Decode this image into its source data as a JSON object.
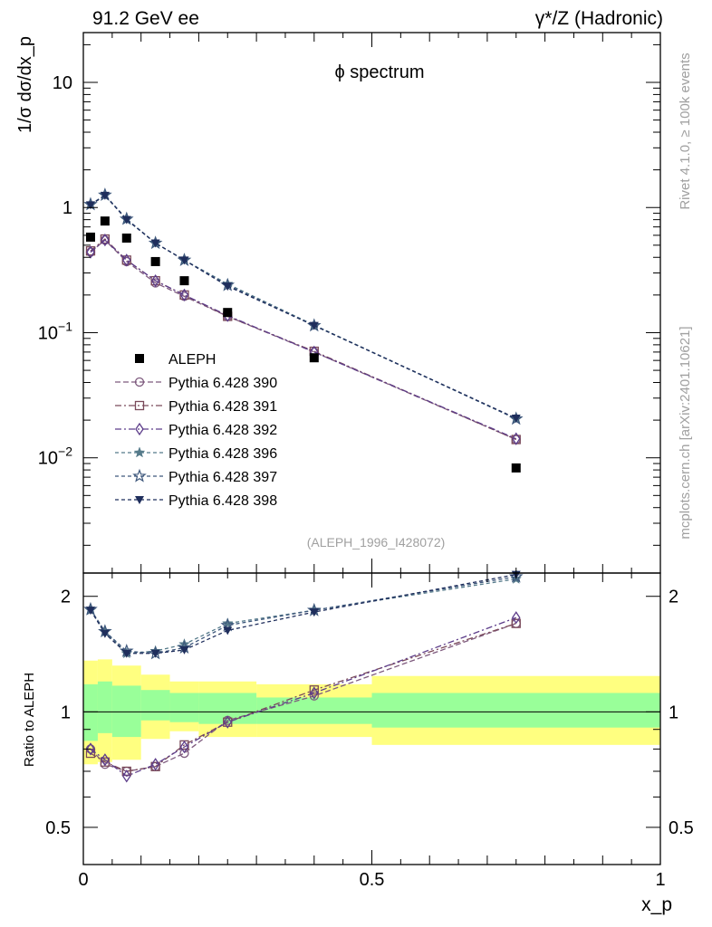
{
  "header": {
    "left": "91.2 GeV ee",
    "right": "γ*/Z (Hadronic)"
  },
  "side_labels": {
    "rivet": "Rivet 4.1.0, ≥ 100k events",
    "mcplots": "mcplots.cern.ch [arXiv:2401.10621]"
  },
  "chart_data": {
    "type": "line",
    "title": "ϕ spectrum",
    "analysis_id": "(ALEPH_1996_I428072)",
    "xlabel": "x_p",
    "ylabel": "1/σ dσ/dx_p",
    "ratio_ylabel": "Ratio to ALEPH",
    "xlim": [
      0,
      1
    ],
    "ylim": [
      0.0012,
      25
    ],
    "yscale": "log",
    "ratio_ylim": [
      0.4,
      2.3
    ],
    "x_ticks": [
      0,
      0.5,
      1
    ],
    "x_tick_labels": [
      "0",
      "0.5",
      "1"
    ],
    "y_ticks_main": [
      {
        "value": 10,
        "mantissa": "10",
        "exp": ""
      },
      {
        "value": 1,
        "mantissa": "1",
        "exp": ""
      },
      {
        "value": 0.1,
        "mantissa": "10",
        "exp": "−1"
      },
      {
        "value": 0.01,
        "mantissa": "10",
        "exp": "−2"
      }
    ],
    "ratio_ticks": [
      {
        "value": 2,
        "label": "2"
      },
      {
        "value": 1,
        "label": "1"
      },
      {
        "value": 0.5,
        "label": "0.5"
      }
    ],
    "bins": [
      {
        "lo": 0.0,
        "hi": 0.025
      },
      {
        "lo": 0.025,
        "hi": 0.05
      },
      {
        "lo": 0.05,
        "hi": 0.1
      },
      {
        "lo": 0.1,
        "hi": 0.15
      },
      {
        "lo": 0.15,
        "hi": 0.2
      },
      {
        "lo": 0.2,
        "hi": 0.3
      },
      {
        "lo": 0.3,
        "hi": 0.5
      },
      {
        "lo": 0.5,
        "hi": 1.0
      }
    ],
    "data": {
      "name": "ALEPH",
      "x": [
        0.0125,
        0.0375,
        0.075,
        0.125,
        0.175,
        0.25,
        0.4,
        0.75
      ],
      "y": [
        0.58,
        0.78,
        0.57,
        0.37,
        0.26,
        0.145,
        0.063,
        0.0083
      ]
    },
    "ratio_bands": {
      "green_lo": [
        0.84,
        0.88,
        0.86,
        0.95,
        0.94,
        0.93,
        0.93,
        0.91
      ],
      "green_hi": [
        1.18,
        1.2,
        1.17,
        1.14,
        1.12,
        1.12,
        1.09,
        1.12
      ],
      "yellow_lo": [
        0.73,
        0.74,
        0.75,
        0.85,
        0.89,
        0.86,
        0.86,
        0.82
      ],
      "yellow_hi": [
        1.36,
        1.37,
        1.32,
        1.25,
        1.2,
        1.2,
        1.18,
        1.24
      ]
    },
    "series": [
      {
        "name": "Pythia 6.428 390",
        "color": "#7e5a7e",
        "marker": "circle-open",
        "dash": "6,3",
        "x": [
          0.0125,
          0.0375,
          0.075,
          0.125,
          0.175,
          0.25,
          0.4,
          0.75
        ],
        "values": [
          0.44,
          0.55,
          0.37,
          0.25,
          0.195,
          0.135,
          0.07,
          0.014
        ],
        "ratio": [
          0.8,
          0.73,
          0.7,
          0.72,
          0.78,
          0.95,
          1.1,
          1.7
        ]
      },
      {
        "name": "Pythia 6.428 391",
        "color": "#7a4a5a",
        "marker": "square-open",
        "dash": "7,3,2,3",
        "x": [
          0.0125,
          0.0375,
          0.075,
          0.125,
          0.175,
          0.25,
          0.4,
          0.75
        ],
        "values": [
          0.45,
          0.56,
          0.38,
          0.26,
          0.2,
          0.135,
          0.071,
          0.014
        ],
        "ratio": [
          0.78,
          0.74,
          0.7,
          0.72,
          0.82,
          0.94,
          1.14,
          1.7
        ]
      },
      {
        "name": "Pythia 6.428 392",
        "color": "#5d3d8a",
        "marker": "diamond-open",
        "dash": "7,3,2,3",
        "x": [
          0.0125,
          0.0375,
          0.075,
          0.125,
          0.175,
          0.25,
          0.4,
          0.75
        ],
        "values": [
          0.44,
          0.55,
          0.38,
          0.26,
          0.2,
          0.137,
          0.07,
          0.0142
        ],
        "ratio": [
          0.8,
          0.75,
          0.68,
          0.73,
          0.81,
          0.94,
          1.12,
          1.76
        ]
      },
      {
        "name": "Pythia 6.428 396",
        "color": "#557a8a",
        "marker": "star-full",
        "dash": "4,3",
        "x": [
          0.0125,
          0.0375,
          0.075,
          0.125,
          0.175,
          0.25,
          0.4,
          0.75
        ],
        "values": [
          1.05,
          1.25,
          0.8,
          0.52,
          0.38,
          0.245,
          0.115,
          0.0205
        ],
        "ratio": [
          1.84,
          1.62,
          1.42,
          1.44,
          1.5,
          1.7,
          1.84,
          2.22
        ]
      },
      {
        "name": "Pythia 6.428 397",
        "color": "#3e587c",
        "marker": "star-open",
        "dash": "4,3",
        "x": [
          0.0125,
          0.0375,
          0.075,
          0.125,
          0.175,
          0.25,
          0.4,
          0.75
        ],
        "values": [
          1.06,
          1.26,
          0.81,
          0.52,
          0.38,
          0.24,
          0.114,
          0.0205
        ],
        "ratio": [
          1.85,
          1.62,
          1.44,
          1.42,
          1.47,
          1.68,
          1.84,
          2.25
        ]
      },
      {
        "name": "Pythia 6.428 398",
        "color": "#1f2e5c",
        "marker": "triangle-down-full",
        "dash": "4,3",
        "x": [
          0.0125,
          0.0375,
          0.075,
          0.125,
          0.175,
          0.25,
          0.4,
          0.75
        ],
        "values": [
          1.05,
          1.25,
          0.8,
          0.52,
          0.38,
          0.235,
          0.114,
          0.0207
        ],
        "ratio": [
          1.84,
          1.6,
          1.42,
          1.42,
          1.45,
          1.63,
          1.82,
          2.28
        ]
      }
    ]
  }
}
